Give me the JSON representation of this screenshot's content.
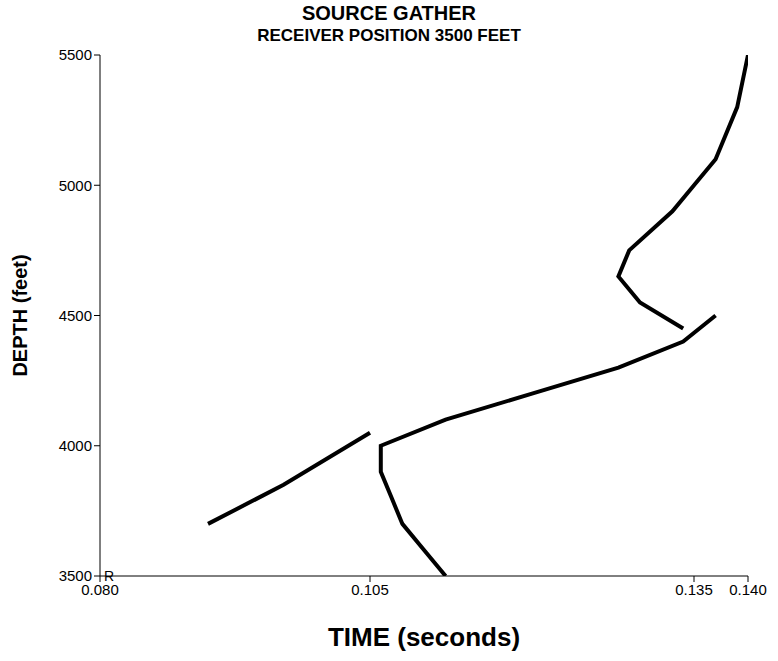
{
  "chart_data": {
    "type": "line",
    "title": "SOURCE GATHER",
    "subtitle": "RECEIVER POSITION 3500 FEET",
    "x_label": "TIME (seconds)",
    "y_label": "DEPTH (feet)",
    "xlim": [
      0.08,
      0.14
    ],
    "xticks": [
      {
        "value": 0.08,
        "label": "0.080"
      },
      {
        "value": 0.105,
        "label": "0.105"
      },
      {
        "value": 0.135,
        "label": "0.135"
      },
      {
        "value": 0.14,
        "label": "0.140"
      }
    ],
    "ylim": [
      3500,
      5500
    ],
    "yticks": [
      3500,
      4000,
      4500,
      5000,
      5500
    ],
    "annotations": [
      {
        "text": "R",
        "x": 0.08,
        "y": 3500
      }
    ],
    "series": [
      {
        "color": "#000000",
        "y": [
          3500,
          3600,
          3700,
          3800,
          3900,
          4000,
          4100,
          4200,
          4300,
          4400,
          4500
        ],
        "x": [
          0.112,
          0.11,
          0.108,
          0.107,
          0.106,
          0.106,
          0.112,
          0.12,
          0.128,
          0.134,
          0.137
        ]
      },
      {
        "color": "#000000",
        "y": [
          4450,
          4550,
          4650,
          4750,
          4900,
          5000,
          5100,
          5300,
          5500
        ],
        "x": [
          0.134,
          0.13,
          0.128,
          0.129,
          0.133,
          0.135,
          0.137,
          0.139,
          0.14
        ]
      },
      {
        "color": "#000000",
        "y": [
          3700,
          3850,
          4050
        ],
        "x": [
          0.09,
          0.097,
          0.105
        ]
      }
    ]
  }
}
